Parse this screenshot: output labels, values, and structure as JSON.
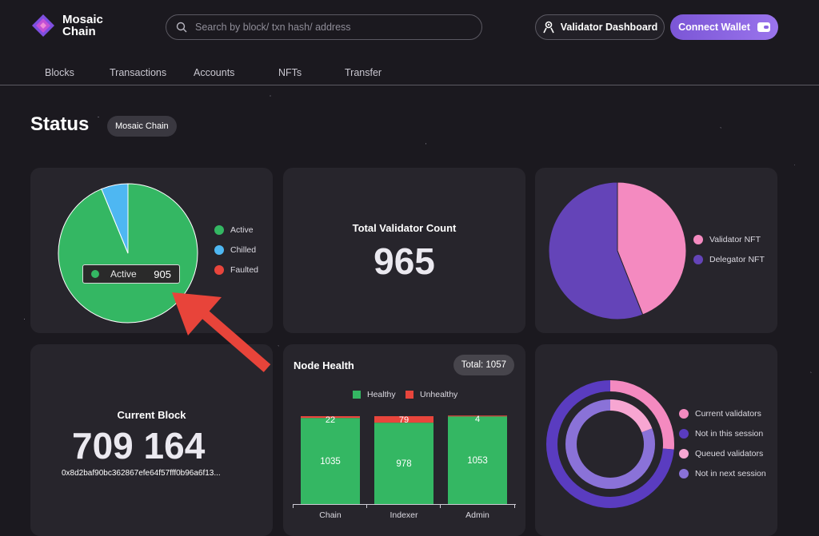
{
  "header": {
    "logo_text_1": "Mosaic",
    "logo_text_2": "Chain",
    "search_placeholder": "Search by block/ txn hash/ address",
    "validator_dashboard_label": "Validator Dashboard",
    "connect_wallet_label": "Connect Wallet"
  },
  "nav": {
    "items": [
      {
        "label": "Blocks"
      },
      {
        "label": "Transactions"
      },
      {
        "label": "Accounts"
      },
      {
        "label": "NFTs"
      },
      {
        "label": "Transfer"
      }
    ]
  },
  "status": {
    "title": "Status",
    "network_chip": "Mosaic Chain"
  },
  "validator_status": {
    "legend": [
      {
        "label": "Active",
        "color": "#34b763"
      },
      {
        "label": "Chilled",
        "color": "#4eb7f2"
      },
      {
        "label": "Faulted",
        "color": "#e8453c"
      }
    ],
    "tooltip": {
      "label": "Active",
      "value": "905"
    }
  },
  "total_validators": {
    "label": "Total Validator Count",
    "value": "965"
  },
  "nft_distribution": {
    "legend": [
      {
        "label": "Validator NFT",
        "color": "#f48ac0"
      },
      {
        "label": "Delegator NFT",
        "color": "#6444b8"
      }
    ]
  },
  "current_block": {
    "label": "Current Block",
    "value": "709 164",
    "hash": "0x8d2baf90bc362867efe64f57fff0b96a6f13..."
  },
  "node_health": {
    "title": "Node Health",
    "total": "Total: 1057",
    "legend": [
      {
        "label": "Healthy",
        "color": "#34b763"
      },
      {
        "label": "Unhealthy",
        "color": "#e8453c"
      }
    ]
  },
  "sessions": {
    "legend": [
      {
        "label": "Current validators",
        "color": "#f48ac0"
      },
      {
        "label": "Not in this session",
        "color": "#5a3cc0"
      },
      {
        "label": "Queued validators",
        "color": "#f7a6d2"
      },
      {
        "label": "Not in next session",
        "color": "#8a72d8"
      }
    ]
  },
  "chart_data": [
    {
      "type": "pie",
      "categories": [
        "Active",
        "Chilled",
        "Faulted"
      ],
      "values": [
        905,
        60,
        0
      ]
    },
    {
      "type": "pie",
      "categories": [
        "Validator NFT",
        "Delegator NFT"
      ],
      "values": [
        44,
        56
      ]
    },
    {
      "type": "bar",
      "categories": [
        "Chain",
        "Indexer",
        "Admin"
      ],
      "series": [
        {
          "name": "Healthy",
          "values": [
            1035,
            978,
            1053
          ]
        },
        {
          "name": "Unhealthy",
          "values": [
            22,
            79,
            4
          ]
        }
      ],
      "stacked": true
    }
  ]
}
